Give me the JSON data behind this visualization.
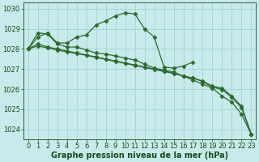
{
  "xlabel_label": "Graphe pression niveau de la mer (hPa)",
  "x": [
    0,
    1,
    2,
    3,
    4,
    5,
    6,
    7,
    8,
    9,
    10,
    11,
    12,
    13,
    14,
    15,
    16,
    17,
    18,
    19,
    20,
    21,
    22,
    23
  ],
  "series": [
    [
      1028.0,
      1028.6,
      1028.8,
      1028.3,
      1028.3,
      1028.6,
      1028.7,
      1029.2,
      1029.4,
      1029.65,
      1029.8,
      1029.75,
      1029.0,
      1028.6,
      1027.1,
      1027.05,
      1027.15,
      1027.35,
      null,
      null,
      null,
      null,
      null,
      null
    ],
    [
      1028.0,
      1028.8,
      1028.75,
      1028.25,
      1028.1,
      1028.1,
      1027.95,
      1027.8,
      1027.75,
      1027.65,
      1027.55,
      1027.45,
      1027.25,
      1027.05,
      1026.95,
      1026.85,
      1026.65,
      1026.45,
      1026.25,
      1026.05,
      1025.65,
      1025.35,
      1024.75,
      1023.75
    ],
    [
      1028.0,
      1028.25,
      1028.1,
      1028.0,
      1027.9,
      1027.8,
      1027.7,
      1027.6,
      1027.5,
      1027.4,
      1027.3,
      1027.2,
      1027.1,
      1027.0,
      1026.9,
      1026.8,
      1026.65,
      1026.55,
      1026.4,
      1026.15,
      1026.05,
      1025.65,
      1025.15,
      1023.75
    ],
    [
      1028.0,
      1028.15,
      1028.05,
      1027.95,
      1027.85,
      1027.78,
      1027.68,
      1027.58,
      1027.48,
      1027.38,
      1027.28,
      1027.18,
      1027.08,
      1026.98,
      1026.88,
      1026.78,
      1026.65,
      1026.55,
      1026.38,
      1026.1,
      1025.98,
      1025.58,
      1025.08,
      1023.75
    ]
  ],
  "line_color": "#2d6a2d",
  "marker": "D",
  "markersize": 2.5,
  "markeredgewidth": 0.5,
  "linewidth": 0.9,
  "bg_color": "#c8eaea",
  "grid_color": "#9ecece",
  "ylim": [
    1023.5,
    1030.3
  ],
  "yticks": [
    1024,
    1025,
    1026,
    1027,
    1028,
    1029,
    1030
  ],
  "xticks": [
    0,
    1,
    2,
    3,
    4,
    5,
    6,
    7,
    8,
    9,
    10,
    11,
    12,
    13,
    14,
    15,
    16,
    17,
    18,
    19,
    20,
    21,
    22,
    23
  ],
  "xlabel_fontsize": 7,
  "tick_fontsize": 6,
  "label_color": "#1a4a1a",
  "figwidth": 3.2,
  "figheight": 2.0,
  "dpi": 100
}
